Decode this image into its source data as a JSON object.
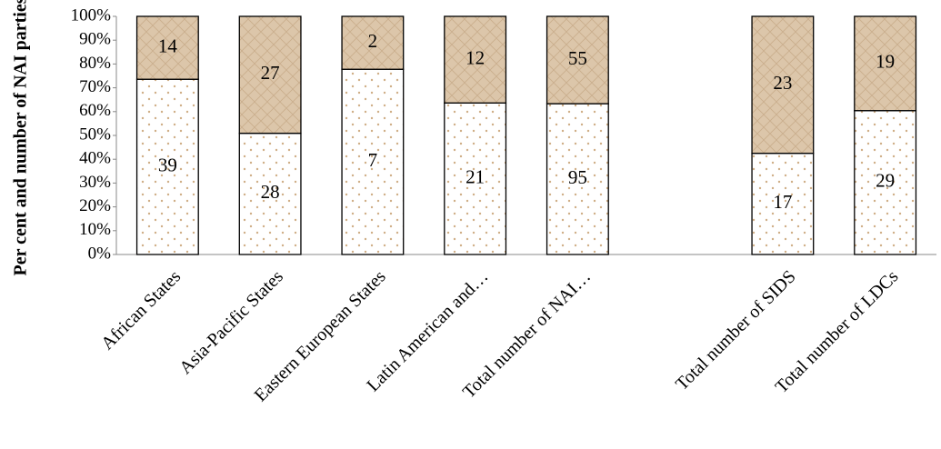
{
  "chart_data": {
    "type": "bar",
    "stacked": "percent",
    "y_label": "Per cent and number of NAI parties",
    "categories": [
      "African States",
      "Asia-Pacific States",
      "Eastern European States",
      "Latin American and…",
      "Total number of NAI…",
      null,
      "Total number of SIDS",
      "Total number of LDCs"
    ],
    "series": [
      {
        "color": "#cfae86",
        "pattern": "dots",
        "values": [
          39,
          28,
          7,
          21,
          95,
          null,
          17,
          29
        ]
      },
      {
        "color": "#dcc6aa",
        "pattern": "crosshatch",
        "values": [
          14,
          27,
          2,
          12,
          55,
          null,
          23,
          19
        ]
      }
    ],
    "ylim": [
      0,
      100
    ],
    "yticks": [
      {
        "value": 0,
        "label": "0%"
      },
      {
        "value": 10,
        "label": "10%"
      },
      {
        "value": 20,
        "label": "20%"
      },
      {
        "value": 30,
        "label": "30%"
      },
      {
        "value": 40,
        "label": "40%"
      },
      {
        "value": 50,
        "label": "50%"
      },
      {
        "value": 60,
        "label": "60%"
      },
      {
        "value": 70,
        "label": "70%"
      },
      {
        "value": 80,
        "label": "80%"
      },
      {
        "value": 90,
        "label": "90%"
      },
      {
        "value": 100,
        "label": "100%"
      }
    ],
    "grid": false
  }
}
